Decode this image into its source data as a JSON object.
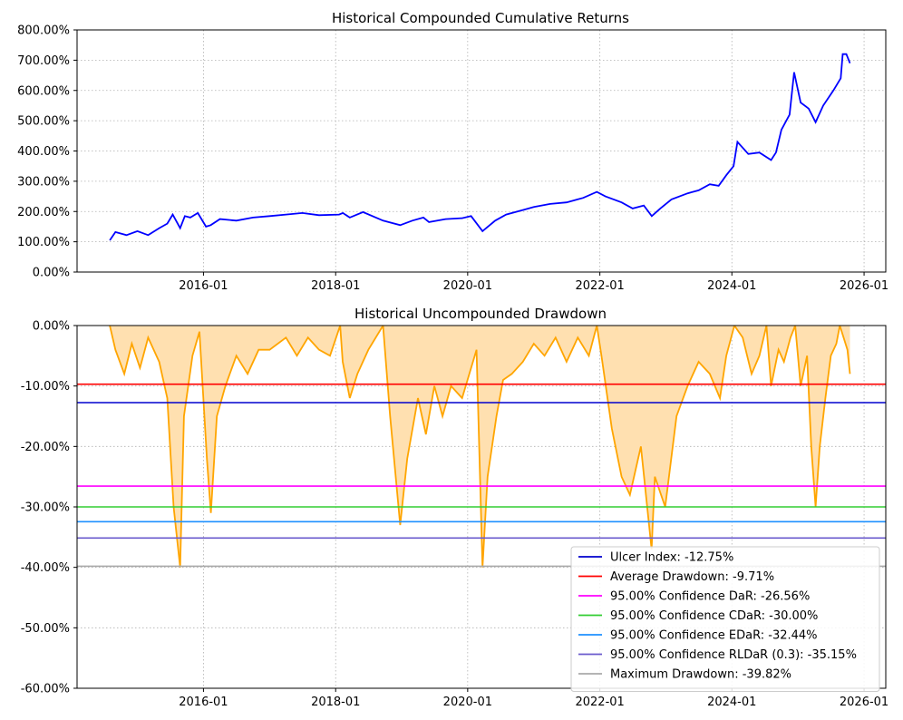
{
  "chart_data": [
    {
      "type": "line",
      "title": "Historical Compounded Cumulative Returns",
      "xlabel": "",
      "ylabel": "",
      "x_ticks": [
        "2016-01",
        "2018-01",
        "2020-01",
        "2022-01",
        "2024-01",
        "2026-01"
      ],
      "y_ticks": [
        "0.00%",
        "100.00%",
        "200.00%",
        "300.00%",
        "400.00%",
        "500.00%",
        "600.00%",
        "700.00%",
        "800.00%"
      ],
      "xlim": [
        "2014-02-01",
        "2026-05-01"
      ],
      "ylim": [
        0,
        8
      ],
      "grid": true,
      "line_color": "#0000ff",
      "series": [
        {
          "x": [
            "2014-08-01",
            "2014-09-01",
            "2014-11-01",
            "2015-01-01",
            "2015-03-01",
            "2015-05-01",
            "2015-06-15",
            "2015-07-15",
            "2015-08-25",
            "2015-09-20",
            "2015-10-20",
            "2015-12-01",
            "2016-01-15",
            "2016-02-10",
            "2016-04-01",
            "2016-07-01",
            "2016-10-01",
            "2017-01-01",
            "2017-04-01",
            "2017-07-01",
            "2017-10-01",
            "2018-01-20",
            "2018-02-10",
            "2018-03-20",
            "2018-06-01",
            "2018-09-20",
            "2018-12-24",
            "2019-03-01",
            "2019-05-01",
            "2019-06-01",
            "2019-09-01",
            "2019-12-01",
            "2020-01-20",
            "2020-03-23",
            "2020-06-01",
            "2020-08-01",
            "2020-11-01",
            "2021-01-01",
            "2021-04-01",
            "2021-07-01",
            "2021-10-01",
            "2021-12-15",
            "2022-02-01",
            "2022-05-01",
            "2022-07-01",
            "2022-09-01",
            "2022-10-15",
            "2022-12-01",
            "2023-02-01",
            "2023-05-01",
            "2023-07-01",
            "2023-09-01",
            "2023-10-20",
            "2023-12-01",
            "2024-01-10",
            "2024-02-01",
            "2024-04-01",
            "2024-06-01",
            "2024-08-05",
            "2024-09-01",
            "2024-10-01",
            "2024-11-15",
            "2024-12-10",
            "2025-01-15",
            "2025-03-01",
            "2025-04-08",
            "2025-05-20",
            "2025-07-15",
            "2025-08-25",
            "2025-09-05",
            "2025-09-25",
            "2025-10-15"
          ],
          "y": [
            1.05,
            1.32,
            1.22,
            1.35,
            1.22,
            1.45,
            1.6,
            1.9,
            1.45,
            1.85,
            1.8,
            1.95,
            1.5,
            1.55,
            1.75,
            1.7,
            1.8,
            1.85,
            1.9,
            1.95,
            1.88,
            1.9,
            1.95,
            1.8,
            1.98,
            1.7,
            1.55,
            1.7,
            1.8,
            1.65,
            1.75,
            1.78,
            1.85,
            1.35,
            1.7,
            1.9,
            2.05,
            2.15,
            2.25,
            2.3,
            2.45,
            2.65,
            2.5,
            2.3,
            2.1,
            2.2,
            1.85,
            2.1,
            2.4,
            2.6,
            2.7,
            2.9,
            2.85,
            3.2,
            3.5,
            4.3,
            3.9,
            3.95,
            3.7,
            3.95,
            4.7,
            5.2,
            6.6,
            5.6,
            5.4,
            4.95,
            5.5,
            6.0,
            6.4,
            7.2,
            7.2,
            6.9
          ]
        }
      ]
    },
    {
      "type": "area",
      "title": "Historical Uncompounded Drawdown",
      "xlabel": "",
      "ylabel": "",
      "x_ticks": [
        "2016-01",
        "2018-01",
        "2020-01",
        "2022-01",
        "2024-01",
        "2026-01"
      ],
      "y_ticks": [
        "0.00%",
        "-10.00%",
        "-20.00%",
        "-30.00%",
        "-40.00%",
        "-50.00%",
        "-60.00%"
      ],
      "xlim": [
        "2014-02-01",
        "2026-05-01"
      ],
      "ylim": [
        -0.6,
        0
      ],
      "grid": true,
      "line_color": "#ffa500",
      "fill_color": "#ffe0b0",
      "legend_position": "lower-right",
      "series": [
        {
          "x": [
            "2014-08-01",
            "2014-09-01",
            "2014-10-20",
            "2014-12-01",
            "2015-01-15",
            "2015-03-01",
            "2015-05-01",
            "2015-06-15",
            "2015-07-20",
            "2015-08-25",
            "2015-09-15",
            "2015-11-01",
            "2015-12-10",
            "2016-01-20",
            "2016-02-11",
            "2016-03-15",
            "2016-05-01",
            "2016-07-01",
            "2016-09-01",
            "2016-11-01",
            "2017-01-01",
            "2017-04-01",
            "2017-06-01",
            "2017-08-01",
            "2017-10-01",
            "2017-12-01",
            "2018-01-26",
            "2018-02-09",
            "2018-03-20",
            "2018-05-01",
            "2018-07-01",
            "2018-09-20",
            "2018-10-29",
            "2018-12-24",
            "2019-02-01",
            "2019-04-01",
            "2019-05-15",
            "2019-07-01",
            "2019-08-15",
            "2019-10-01",
            "2019-12-01",
            "2020-02-19",
            "2020-03-23",
            "2020-04-20",
            "2020-06-08",
            "2020-07-15",
            "2020-09-01",
            "2020-11-01",
            "2021-01-01",
            "2021-03-01",
            "2021-05-01",
            "2021-07-01",
            "2021-09-01",
            "2021-11-01",
            "2021-12-15",
            "2022-01-10",
            "2022-03-08",
            "2022-05-01",
            "2022-06-16",
            "2022-08-16",
            "2022-10-14",
            "2022-11-01",
            "2022-12-28",
            "2023-03-01",
            "2023-05-01",
            "2023-07-01",
            "2023-09-01",
            "2023-10-27",
            "2023-12-01",
            "2024-01-15",
            "2024-03-01",
            "2024-04-19",
            "2024-06-01",
            "2024-07-10",
            "2024-08-05",
            "2024-09-15",
            "2024-10-15",
            "2024-11-20",
            "2024-12-16",
            "2025-01-15",
            "2025-02-20",
            "2025-03-15",
            "2025-04-08",
            "2025-05-01",
            "2025-06-01",
            "2025-07-01",
            "2025-08-01",
            "2025-08-20",
            "2025-09-10",
            "2025-10-01",
            "2025-10-15"
          ],
          "y": [
            0,
            -0.04,
            -0.08,
            -0.03,
            -0.07,
            -0.02,
            -0.06,
            -0.12,
            -0.3,
            -0.4,
            -0.15,
            -0.05,
            -0.01,
            -0.22,
            -0.31,
            -0.15,
            -0.1,
            -0.05,
            -0.08,
            -0.04,
            -0.04,
            -0.02,
            -0.05,
            -0.02,
            -0.04,
            -0.05,
            0,
            -0.06,
            -0.12,
            -0.08,
            -0.04,
            0,
            -0.15,
            -0.33,
            -0.22,
            -0.12,
            -0.18,
            -0.1,
            -0.15,
            -0.1,
            -0.12,
            -0.04,
            -0.4,
            -0.25,
            -0.15,
            -0.09,
            -0.08,
            -0.06,
            -0.03,
            -0.05,
            -0.02,
            -0.06,
            -0.02,
            -0.05,
            0,
            -0.05,
            -0.17,
            -0.25,
            -0.28,
            -0.2,
            -0.37,
            -0.25,
            -0.3,
            -0.15,
            -0.1,
            -0.06,
            -0.08,
            -0.12,
            -0.05,
            0,
            -0.02,
            -0.08,
            -0.05,
            0,
            -0.1,
            -0.04,
            -0.06,
            -0.02,
            0,
            -0.1,
            -0.05,
            -0.2,
            -0.3,
            -0.2,
            -0.12,
            -0.05,
            -0.03,
            0,
            -0.02,
            -0.04,
            -0.08
          ]
        }
      ],
      "reference_lines": [
        {
          "label": "Ulcer Index: -12.75%",
          "value": -0.1275,
          "color": "#0000cd"
        },
        {
          "label": "Average Drawdown: -9.71%",
          "value": -0.0971,
          "color": "#ff0000"
        },
        {
          "label": "95.00% Confidence DaR: -26.56%",
          "value": -0.2656,
          "color": "#ff00ff"
        },
        {
          "label": "95.00% Confidence CDaR: -30.00%",
          "value": -0.3,
          "color": "#32cd32"
        },
        {
          "label": "95.00% Confidence EDaR: -32.44%",
          "value": -0.3244,
          "color": "#1e90ff"
        },
        {
          "label": "95.00% Confidence RLDaR (0.3): -35.15%",
          "value": -0.3515,
          "color": "#6a5acd"
        },
        {
          "label": "Maximum Drawdown: -39.82%",
          "value": -0.3982,
          "color": "#a9a9a9"
        }
      ]
    }
  ]
}
